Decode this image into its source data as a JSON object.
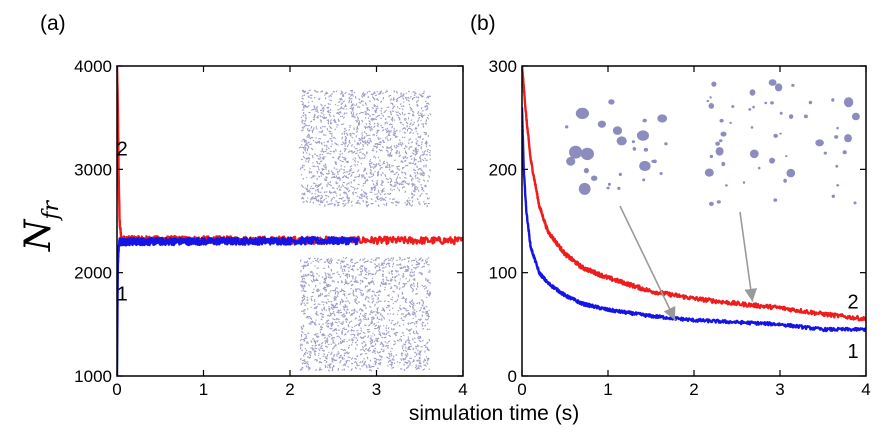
{
  "shared": {
    "xlabel": "simulation time (s)",
    "ylabel_main": "N",
    "ylabel_sub": "fr"
  },
  "colors": {
    "curve1": "#1414e6",
    "curve2": "#ee1c1c",
    "inset": "#8c8cbe",
    "arrow": "#9a9a9a"
  },
  "chart_data": [
    {
      "type": "line",
      "panel_label": "(a)",
      "xlim": [
        0,
        4
      ],
      "ylim": [
        1000,
        4000
      ],
      "x_ticks": [
        "0",
        "1",
        "2",
        "3",
        "4"
      ],
      "y_ticks": [
        "1000",
        "2000",
        "3000",
        "4000"
      ],
      "series": [
        {
          "name": "2",
          "color": "#ee1c1c",
          "x": [
            0,
            0.01,
            0.02,
            0.03,
            0.05,
            4.0
          ],
          "y": [
            4000,
            3600,
            2900,
            2500,
            2320,
            2310
          ],
          "noise": 35
        },
        {
          "name": "1",
          "color": "#1414e6",
          "x": [
            0,
            0.005,
            0.01,
            0.02,
            0.03,
            2.8
          ],
          "y": [
            1000,
            1600,
            2100,
            2250,
            2300,
            2310
          ],
          "noise": 35
        }
      ],
      "curve_labels": [
        {
          "text": "2",
          "x": 0.06,
          "y": 3200
        },
        {
          "text": "1",
          "x": 0.06,
          "y": 1800
        }
      ]
    },
    {
      "type": "line",
      "panel_label": "(b)",
      "xlim": [
        0,
        4
      ],
      "ylim": [
        0,
        300
      ],
      "x_ticks": [
        "0",
        "1",
        "2",
        "3",
        "4"
      ],
      "y_ticks": [
        "0",
        "100",
        "200",
        "300"
      ],
      "series": [
        {
          "name": "2",
          "color": "#ee1c1c",
          "x": [
            0,
            0.05,
            0.1,
            0.2,
            0.3,
            0.5,
            0.7,
            1.0,
            1.5,
            2.0,
            2.5,
            3.0,
            3.5,
            4.0
          ],
          "y": [
            300,
            250,
            210,
            165,
            140,
            118,
            105,
            95,
            82,
            75,
            70,
            66,
            60,
            55
          ],
          "noise": 2
        },
        {
          "name": "1",
          "color": "#1414e6",
          "x": [
            0,
            0.02,
            0.05,
            0.1,
            0.2,
            0.3,
            0.5,
            0.7,
            1.0,
            1.5,
            2.0,
            2.5,
            3.0,
            3.5,
            4.0
          ],
          "y": [
            260,
            200,
            160,
            125,
            100,
            90,
            78,
            70,
            64,
            58,
            54,
            52,
            50,
            45,
            45
          ],
          "noise": 1.5
        }
      ],
      "curve_labels": [
        {
          "text": "2",
          "x": 3.85,
          "y": 72
        },
        {
          "text": "1",
          "x": 3.85,
          "y": 24
        }
      ]
    }
  ]
}
